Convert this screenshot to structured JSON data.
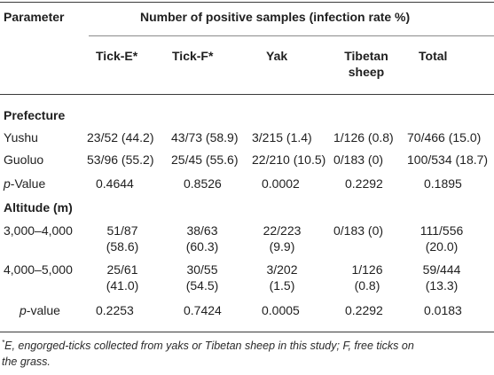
{
  "header": {
    "parameter": "Parameter",
    "group_title": "Number of positive samples (infection rate %)",
    "columns": [
      "Tick-E*",
      "Tick-F*",
      "Yak",
      "Tibetan",
      "sheep",
      "Total"
    ]
  },
  "sections": {
    "prefecture": {
      "title": "Prefecture",
      "rows": [
        {
          "label": "Yushu",
          "cells": [
            "23/52 (44.2)",
            "43/73 (58.9)",
            "3/215 (1.4)",
            "1/126 (0.8)",
            "70/466 (15.0)"
          ]
        },
        {
          "label": "Guoluo",
          "cells": [
            "53/96 (55.2)",
            "25/45 (55.6)",
            "22/210 (10.5)",
            "0/183 (0)",
            "100/534 (18.7)"
          ]
        }
      ],
      "pvalue": {
        "label_italic": "p",
        "label_rest": "-Value",
        "cells": [
          "0.4644",
          "0.8526",
          "0.0002",
          "0.2292",
          "0.1895"
        ]
      }
    },
    "altitude": {
      "title": "Altitude (m)",
      "rows": [
        {
          "label": "3,000–4,000",
          "line1": [
            "51/87",
            "38/63",
            "22/223",
            "0/183 (0)",
            "111/556"
          ],
          "line2": [
            "(58.6)",
            "(60.3)",
            "(9.9)",
            "",
            "(20.0)"
          ]
        },
        {
          "label": "4,000–5,000",
          "line1": [
            "25/61",
            "30/55",
            "3/202",
            "1/126",
            "59/444"
          ],
          "line2": [
            "(41.0)",
            "(54.5)",
            "(1.5)",
            "(0.8)",
            "(13.3)"
          ]
        }
      ],
      "pvalue": {
        "label_italic": "p",
        "label_rest": "-value",
        "cells": [
          "0.2253",
          "0.7424",
          "0.0005",
          "0.2292",
          "0.0183"
        ]
      }
    }
  },
  "footnote": {
    "marker": "*",
    "line1": "E, engorged-ticks collected from yaks or Tibetan sheep in this study; F, free ticks on",
    "line2": "the grass."
  }
}
